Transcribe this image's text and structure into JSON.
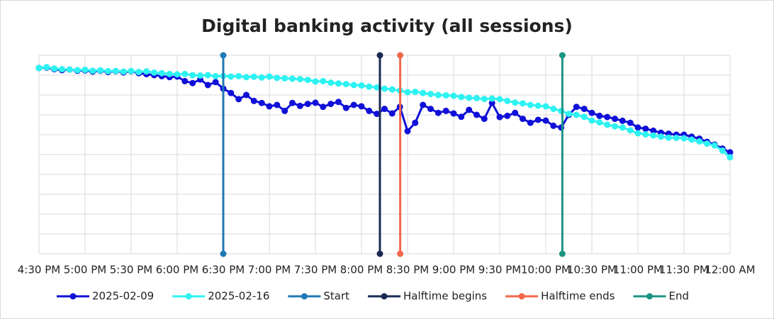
{
  "chart_data": {
    "type": "line",
    "title": "Digital banking activity (all sessions)",
    "xlim": [
      16.5,
      24
    ],
    "ylim": [
      0,
      10
    ],
    "xticks": [
      {
        "value": 16.5,
        "label": "4:30 PM"
      },
      {
        "value": 17,
        "label": "5:00 PM"
      },
      {
        "value": 17.5,
        "label": "5:30 PM"
      },
      {
        "value": 18,
        "label": "6:00 PM"
      },
      {
        "value": 18.5,
        "label": "6:30 PM"
      },
      {
        "value": 19,
        "label": "7:00 PM"
      },
      {
        "value": 19.5,
        "label": "7:30 PM"
      },
      {
        "value": 20,
        "label": "8:00 PM"
      },
      {
        "value": 20.5,
        "label": "8:30 PM"
      },
      {
        "value": 21,
        "label": "9:00 PM"
      },
      {
        "value": 21.5,
        "label": "9:30 PM"
      },
      {
        "value": 22,
        "label": "10:00 PM"
      },
      {
        "value": 22.5,
        "label": "10:30 PM"
      },
      {
        "value": 23,
        "label": "11:00 PM"
      },
      {
        "value": 23.5,
        "label": "11:30 PM"
      },
      {
        "value": 24,
        "label": "12:00 AM"
      }
    ],
    "yticks": [
      0,
      1,
      2,
      3,
      4,
      5,
      6,
      7,
      8,
      9,
      10
    ],
    "ytick_labels": false,
    "grid": true,
    "legend": "bottom",
    "series": [
      {
        "name": "2025-02-09",
        "color": "#1010d8",
        "markers": true,
        "x": [
          16.5,
          16.583,
          16.667,
          16.75,
          16.833,
          16.917,
          17,
          17.083,
          17.167,
          17.25,
          17.333,
          17.417,
          17.5,
          17.583,
          17.667,
          17.75,
          17.833,
          17.917,
          18,
          18.083,
          18.167,
          18.25,
          18.333,
          18.417,
          18.5,
          18.583,
          18.667,
          18.75,
          18.833,
          18.917,
          19,
          19.083,
          19.167,
          19.25,
          19.333,
          19.417,
          19.5,
          19.583,
          19.667,
          19.75,
          19.833,
          19.917,
          20,
          20.083,
          20.167,
          20.25,
          20.333,
          20.417,
          20.5,
          20.583,
          20.667,
          20.75,
          20.833,
          20.917,
          21,
          21.083,
          21.167,
          21.25,
          21.333,
          21.417,
          21.5,
          21.583,
          21.667,
          21.75,
          21.833,
          21.917,
          22,
          22.083,
          22.167,
          22.25,
          22.333,
          22.417,
          22.5,
          22.583,
          22.667,
          22.75,
          22.833,
          22.917,
          23,
          23.083,
          23.167,
          23.25,
          23.333,
          23.417,
          23.5,
          23.583,
          23.667,
          23.75,
          23.833,
          23.917,
          24
        ],
        "values": [
          9.36,
          9.38,
          9.3,
          9.25,
          9.28,
          9.22,
          9.24,
          9.18,
          9.22,
          9.16,
          9.2,
          9.14,
          9.2,
          9.1,
          9.05,
          9.0,
          8.95,
          8.9,
          8.93,
          8.7,
          8.6,
          8.78,
          8.5,
          8.65,
          8.32,
          8.1,
          7.79,
          8.0,
          7.7,
          7.6,
          7.43,
          7.5,
          7.2,
          7.6,
          7.45,
          7.55,
          7.61,
          7.4,
          7.55,
          7.65,
          7.35,
          7.5,
          7.43,
          7.2,
          7.05,
          7.3,
          7.07,
          7.4,
          6.18,
          6.6,
          7.5,
          7.3,
          7.1,
          7.2,
          7.07,
          6.9,
          7.25,
          7.0,
          6.8,
          7.6,
          6.89,
          6.95,
          7.1,
          6.8,
          6.6,
          6.75,
          6.71,
          6.45,
          6.36,
          7.0,
          7.4,
          7.3,
          7.1,
          6.95,
          6.89,
          6.8,
          6.7,
          6.6,
          6.36,
          6.3,
          6.2,
          6.1,
          6.05,
          6.0,
          6.0,
          5.9,
          5.8,
          5.64,
          5.5,
          5.3,
          5.11
        ]
      },
      {
        "name": "2025-02-16",
        "color": "#2ef2f2",
        "markers": true,
        "x": [
          16.5,
          16.583,
          16.667,
          16.75,
          16.833,
          16.917,
          17,
          17.083,
          17.167,
          17.25,
          17.333,
          17.417,
          17.5,
          17.583,
          17.667,
          17.75,
          17.833,
          17.917,
          18,
          18.083,
          18.167,
          18.25,
          18.333,
          18.417,
          18.5,
          18.583,
          18.667,
          18.75,
          18.833,
          18.917,
          19,
          19.083,
          19.167,
          19.25,
          19.333,
          19.417,
          19.5,
          19.583,
          19.667,
          19.75,
          19.833,
          19.917,
          20,
          20.083,
          20.167,
          20.25,
          20.333,
          20.417,
          20.5,
          20.583,
          20.667,
          20.75,
          20.833,
          20.917,
          21,
          21.083,
          21.167,
          21.25,
          21.333,
          21.417,
          21.5,
          21.583,
          21.667,
          21.75,
          21.833,
          21.917,
          22,
          22.083,
          22.167,
          22.25,
          22.333,
          22.417,
          22.5,
          22.583,
          22.667,
          22.75,
          22.833,
          22.917,
          23,
          23.083,
          23.167,
          23.25,
          23.333,
          23.417,
          23.5,
          23.583,
          23.667,
          23.75,
          23.833,
          23.917,
          24
        ],
        "values": [
          9.36,
          9.4,
          9.33,
          9.3,
          9.28,
          9.25,
          9.27,
          9.22,
          9.24,
          9.2,
          9.21,
          9.18,
          9.21,
          9.16,
          9.19,
          9.13,
          9.1,
          9.06,
          9.04,
          9.06,
          9.0,
          8.98,
          9.0,
          8.95,
          8.96,
          8.93,
          8.95,
          8.9,
          8.92,
          8.88,
          8.93,
          8.86,
          8.84,
          8.82,
          8.8,
          8.76,
          8.68,
          8.7,
          8.62,
          8.58,
          8.55,
          8.5,
          8.48,
          8.42,
          8.38,
          8.32,
          8.28,
          8.22,
          8.14,
          8.16,
          8.1,
          8.05,
          8.0,
          7.98,
          7.96,
          7.9,
          7.86,
          7.84,
          7.8,
          7.82,
          7.79,
          7.7,
          7.62,
          7.58,
          7.5,
          7.46,
          7.43,
          7.3,
          7.2,
          7.05,
          7.0,
          6.9,
          6.71,
          6.62,
          6.5,
          6.42,
          6.36,
          6.22,
          6.07,
          6.02,
          5.96,
          5.9,
          5.85,
          5.84,
          5.82,
          5.75,
          5.66,
          5.55,
          5.46,
          5.2,
          4.86
        ]
      },
      {
        "name": "Start",
        "color": "#2079b4",
        "markers": true,
        "x": [
          18.5,
          18.5
        ],
        "values": [
          0,
          10
        ]
      },
      {
        "name": "Halftime begins",
        "color": "#1b2a55",
        "markers": true,
        "x": [
          20.2,
          20.2
        ],
        "values": [
          0,
          10
        ]
      },
      {
        "name": "Halftime ends",
        "color": "#f0684a",
        "markers": true,
        "x": [
          20.42,
          20.42
        ],
        "values": [
          0,
          10
        ]
      },
      {
        "name": "End",
        "color": "#1d9484",
        "markers": true,
        "x": [
          22.18,
          22.18
        ],
        "values": [
          0,
          10
        ]
      }
    ]
  }
}
